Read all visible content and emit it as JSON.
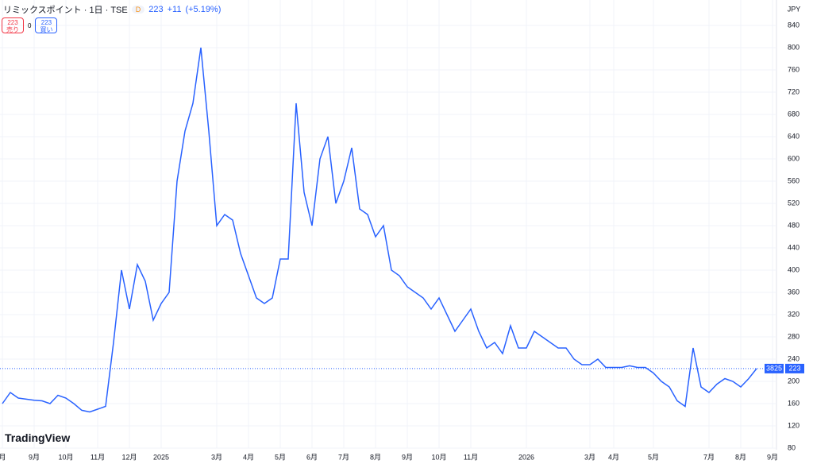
{
  "header": {
    "symbol": "リミックスポイント · 1日 · TSE",
    "interval_badge": "D",
    "price": "223",
    "change": "+11",
    "change_pct": "(+5.19%)",
    "sell_price": "223",
    "sell_label": "売り",
    "spread": "0",
    "buy_price": "223",
    "buy_label": "買い",
    "currency": "JPY",
    "logo": "TradingView"
  },
  "chart_data": {
    "type": "line",
    "series": [
      {
        "name": "リミックスポイント",
        "color": "#2962ff",
        "values": [
          160,
          180,
          170,
          168,
          166,
          165,
          160,
          175,
          170,
          160,
          148,
          145,
          150,
          155,
          270,
          400,
          330,
          410,
          380,
          310,
          340,
          360,
          560,
          650,
          700,
          800,
          650,
          480,
          500,
          490,
          430,
          390,
          350,
          340,
          350,
          420,
          420,
          700,
          540,
          480,
          600,
          640,
          520,
          560,
          620,
          510,
          500,
          460,
          480,
          400,
          390,
          370,
          360,
          350,
          330,
          350,
          320,
          290,
          310,
          330,
          290,
          260,
          270,
          250,
          300,
          260,
          260,
          290,
          280,
          270,
          260,
          260,
          240,
          230,
          230,
          240,
          225,
          225,
          225,
          228,
          225,
          225,
          215,
          200,
          190,
          165,
          155,
          260,
          190,
          180,
          195,
          205,
          200,
          190,
          205,
          223,
          null,
          null
        ]
      }
    ],
    "categories": [
      "月",
      null,
      null,
      null,
      "9月",
      null,
      null,
      null,
      "10月",
      null,
      null,
      null,
      "11月",
      null,
      null,
      null,
      "12月",
      null,
      null,
      null,
      "2025",
      null,
      null,
      null,
      null,
      null,
      null,
      "3月",
      null,
      null,
      null,
      "4月",
      null,
      null,
      null,
      "5月",
      null,
      null,
      null,
      "6月",
      null,
      null,
      null,
      "7月",
      null,
      null,
      null,
      "8月",
      null,
      null,
      null,
      "9月",
      null,
      null,
      null,
      "10月",
      null,
      null,
      null,
      "11月",
      null,
      null,
      null,
      null,
      null,
      null,
      "2026",
      null,
      null,
      null,
      null,
      null,
      null,
      null,
      "3月",
      null,
      null,
      "4月",
      null,
      null,
      null,
      null,
      "5月",
      null,
      null,
      null,
      null,
      null,
      null,
      "7月",
      null,
      null,
      null,
      "8月",
      null,
      null,
      null,
      "9月"
    ],
    "ylim": [
      80,
      880
    ],
    "yticks": [
      80,
      120,
      160,
      200,
      240,
      280,
      320,
      360,
      400,
      440,
      480,
      520,
      560,
      600,
      640,
      680,
      720,
      760,
      800,
      840
    ],
    "last_price": 223,
    "volume_label": "3825",
    "grid": true
  }
}
